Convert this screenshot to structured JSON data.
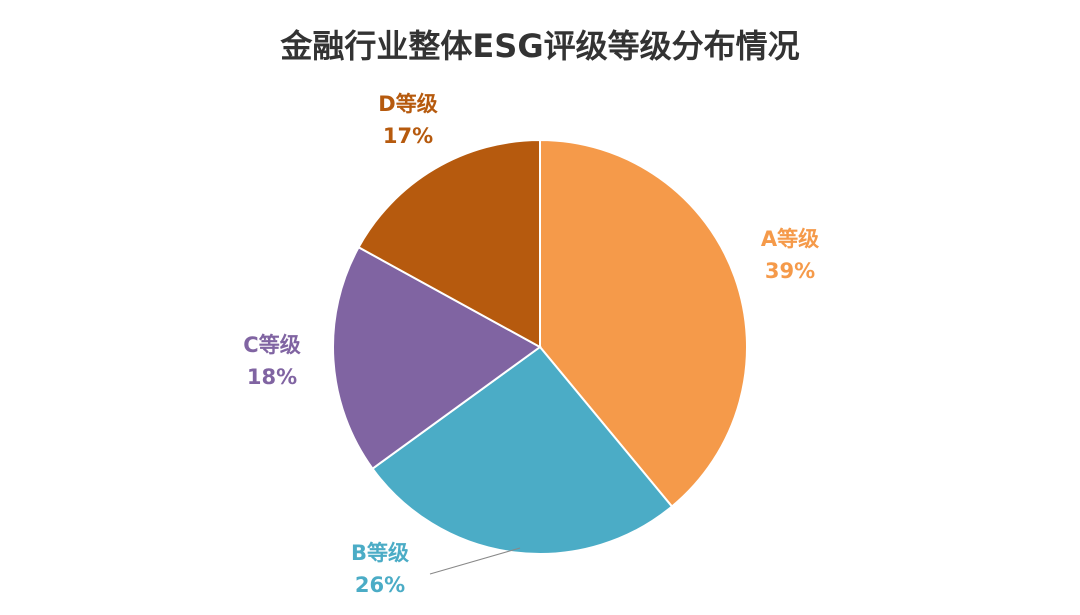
{
  "chart_data": {
    "type": "pie",
    "title": "金融行业整体ESG评级等级分布情况",
    "categories": [
      "A等级",
      "B等级",
      "C等级",
      "D等级"
    ],
    "values": [
      39,
      26,
      18,
      17
    ],
    "value_labels": [
      "39%",
      "26%",
      "18%",
      "17%"
    ],
    "colors": [
      "#f59a4a",
      "#4bacc6",
      "#8064a2",
      "#b65a0e"
    ]
  }
}
